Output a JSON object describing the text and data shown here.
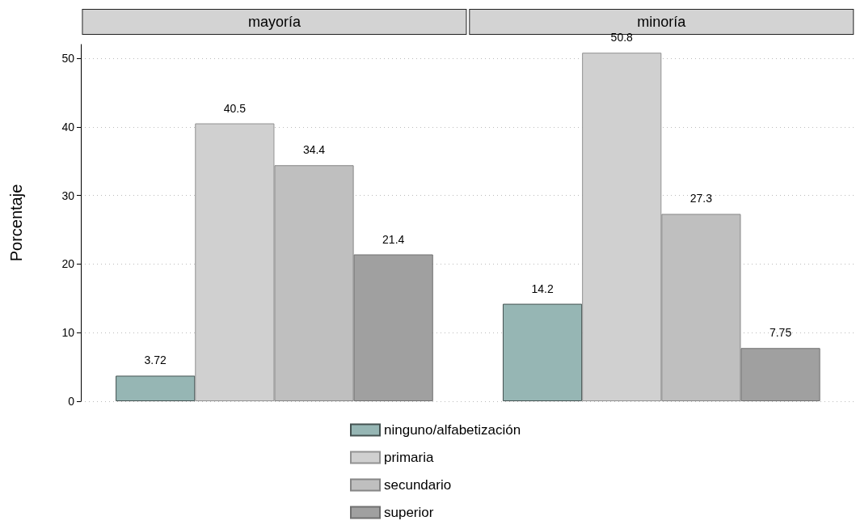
{
  "chart_data": {
    "type": "bar",
    "ylabel": "Porcentaje",
    "categories": [
      "mayoría",
      "minoría"
    ],
    "ylim": [
      0,
      52
    ],
    "yticks": [
      0,
      10,
      20,
      30,
      40,
      50
    ],
    "grid": "y",
    "legend": "bottom",
    "data_labels": true,
    "series": [
      {
        "name": "ninguno/alfabetización",
        "color": "#96b6b4",
        "values": [
          3.72,
          14.2
        ]
      },
      {
        "name": "primaria",
        "color": "#d0d0d0",
        "values": [
          40.5,
          50.8
        ]
      },
      {
        "name": "secundario",
        "color": "#bfbfbf",
        "values": [
          34.4,
          27.3
        ]
      },
      {
        "name": "superior",
        "color": "#a0a0a0",
        "values": [
          21.4,
          7.75
        ]
      }
    ]
  }
}
